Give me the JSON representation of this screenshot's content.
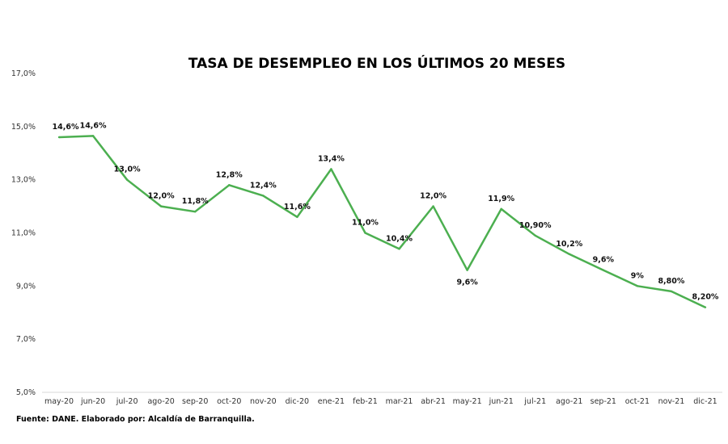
{
  "chart_data": {
    "type": "line",
    "title": "TASA DE DESEMPLEO EN LOS ÚLTIMOS 20 MESES",
    "xlabel": "",
    "ylabel": "",
    "categories": [
      "may-20",
      "jun-20",
      "jul-20",
      "ago-20",
      "sep-20",
      "oct-20",
      "nov-20",
      "dic-20",
      "ene-21",
      "feb-21",
      "mar-21",
      "abr-21",
      "may-21",
      "jun-21",
      "jul-21",
      "ago-21",
      "sep-21",
      "oct-21",
      "nov-21",
      "dic-21"
    ],
    "values": [
      14.6,
      14.65,
      13.0,
      12.0,
      11.8,
      12.8,
      12.4,
      11.6,
      13.4,
      11.0,
      10.4,
      12.0,
      9.6,
      11.9,
      10.9,
      10.2,
      9.6,
      9.0,
      8.8,
      8.2
    ],
    "data_labels": [
      "14,6%",
      "14,6%",
      "13,0%",
      "12,0%",
      "11,8%",
      "12,8%",
      "12,4%",
      "11,6%",
      "13,4%",
      "11,0%",
      "10,4%",
      "12,0%",
      "9,6%",
      "11,9%",
      "10,90%",
      "10,2%",
      "9,6%",
      "9%",
      "8,80%",
      "8,20%"
    ],
    "ylim": [
      5,
      17
    ],
    "yticks": [
      "5,0%",
      "7,0%",
      "9,0%",
      "11,0%",
      "13,0%",
      "15,0%",
      "17,0%"
    ],
    "line_color": "#4caf50",
    "grid": false,
    "legend": "none"
  },
  "source": "Fuente: DANE. Elaborado por: Alcaldía de Barranquilla."
}
